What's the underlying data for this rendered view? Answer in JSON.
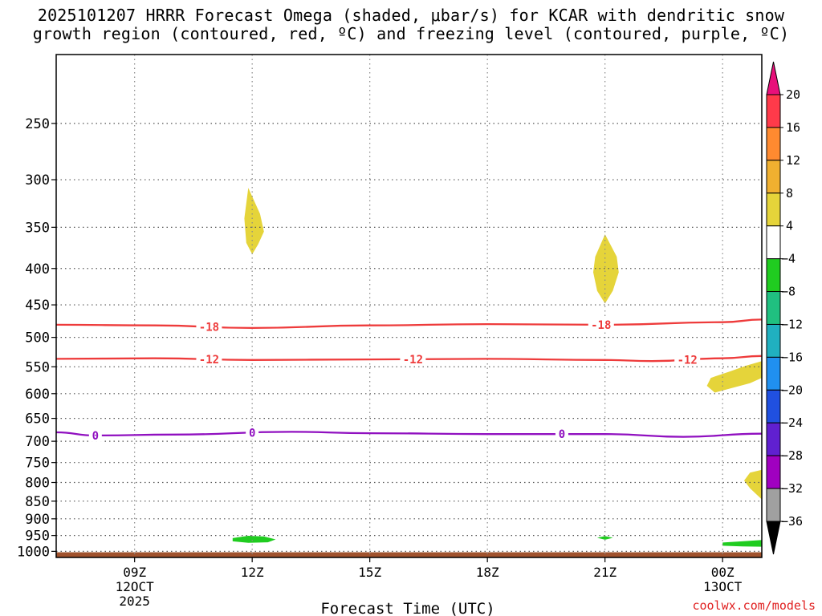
{
  "title": {
    "line1": "2025101207 HRRR Forecast Omega (shaded, μbar/s) for KCAR with dendritic snow",
    "line2": "growth region (contoured, red, ºC) and freezing level (contoured, purple, ºC)"
  },
  "credit": "coolwx.com/models",
  "chart_data": {
    "type": "heatmap",
    "xlabel": "Forecast Time (UTC)",
    "x_ticks": [
      {
        "hour": 9,
        "lines": [
          "09Z",
          "12OCT",
          "2025"
        ]
      },
      {
        "hour": 12,
        "lines": [
          "12Z"
        ]
      },
      {
        "hour": 15,
        "lines": [
          "15Z"
        ]
      },
      {
        "hour": 18,
        "lines": [
          "18Z"
        ]
      },
      {
        "hour": 21,
        "lines": [
          "21Z"
        ]
      },
      {
        "hour": 24,
        "lines": [
          "00Z",
          "13OCT"
        ]
      }
    ],
    "x_range_hours": [
      7,
      25
    ],
    "y_range_hpa": [
      1020,
      200
    ],
    "y_scale": "log",
    "y_ticks": [
      250,
      300,
      350,
      400,
      450,
      500,
      550,
      600,
      650,
      700,
      750,
      800,
      850,
      900,
      950,
      1000
    ],
    "grid": true,
    "colorbar": {
      "labels": [
        20,
        16,
        12,
        8,
        4,
        -4,
        -8,
        -12,
        -16,
        -20,
        -24,
        -28,
        -32,
        -36
      ],
      "colors": [
        "#ff3a4a",
        "#ff8a30",
        "#f0b030",
        "#e5d43a",
        "#ffffff",
        "#20cc20",
        "#20c080",
        "#20b0c0",
        "#2090f0",
        "#2050e0",
        "#6020d0",
        "#a000c0",
        "#a0a0a0"
      ],
      "over_color": "#e8107a",
      "under_color": "#000000"
    },
    "contours": [
      {
        "label": "-18",
        "color": "#ee3b3b",
        "points": [
          [
            7,
            480
          ],
          [
            9.5,
            481
          ],
          [
            12,
            485
          ],
          [
            15,
            481
          ],
          [
            18,
            479
          ],
          [
            21,
            480
          ],
          [
            24,
            476
          ],
          [
            25,
            472
          ]
        ],
        "label_hours": [
          10.9,
          20.9
        ]
      },
      {
        "label": "-12",
        "color": "#ee3b3b",
        "points": [
          [
            7,
            536
          ],
          [
            9.5,
            535
          ],
          [
            12,
            538
          ],
          [
            15,
            537
          ],
          [
            18,
            536
          ],
          [
            21,
            538
          ],
          [
            22.2,
            540
          ],
          [
            24,
            535
          ],
          [
            25,
            531
          ]
        ],
        "label_hours": [
          10.9,
          16.1,
          23.1
        ]
      },
      {
        "label": "0",
        "color": "#9010c0",
        "points": [
          [
            7,
            680
          ],
          [
            8,
            687
          ],
          [
            10,
            685
          ],
          [
            13,
            679
          ],
          [
            15,
            682
          ],
          [
            18,
            684
          ],
          [
            21,
            684
          ],
          [
            23,
            690
          ],
          [
            25,
            683
          ]
        ],
        "label_hours": [
          8.0,
          12.0,
          19.9
        ]
      }
    ],
    "omega_regions": [
      {
        "value": 6,
        "color": "#e5d43a",
        "points": [
          [
            11.9,
            308
          ],
          [
            12.2,
            335
          ],
          [
            12.3,
            355
          ],
          [
            12.15,
            370
          ],
          [
            12.0,
            382
          ],
          [
            11.85,
            368
          ],
          [
            11.8,
            340
          ]
        ]
      },
      {
        "value": 6,
        "color": "#e5d43a",
        "points": [
          [
            21.0,
            358
          ],
          [
            21.3,
            385
          ],
          [
            21.35,
            405
          ],
          [
            21.2,
            430
          ],
          [
            21.0,
            448
          ],
          [
            20.8,
            430
          ],
          [
            20.7,
            405
          ],
          [
            20.75,
            385
          ]
        ]
      },
      {
        "value": 6,
        "color": "#e5d43a",
        "points": [
          [
            25,
            540
          ],
          [
            24.6,
            548
          ],
          [
            24.2,
            558
          ],
          [
            23.7,
            570
          ],
          [
            23.6,
            585
          ],
          [
            23.8,
            598
          ],
          [
            24.2,
            590
          ],
          [
            24.7,
            580
          ],
          [
            25,
            570
          ]
        ]
      },
      {
        "value": 6,
        "color": "#e5d43a",
        "points": [
          [
            25,
            768
          ],
          [
            24.7,
            775
          ],
          [
            24.55,
            795
          ],
          [
            24.7,
            815
          ],
          [
            24.9,
            835
          ],
          [
            25,
            845
          ]
        ]
      },
      {
        "value": -6,
        "color": "#20cc20",
        "points": [
          [
            11.5,
            958
          ],
          [
            11.9,
            951
          ],
          [
            12.3,
            953
          ],
          [
            12.6,
            962
          ],
          [
            12.4,
            971
          ],
          [
            11.9,
            973
          ],
          [
            11.5,
            968
          ]
        ]
      },
      {
        "value": -6,
        "color": "#20cc20",
        "points": [
          [
            20.8,
            957
          ],
          [
            21.0,
            952
          ],
          [
            21.2,
            957
          ],
          [
            21.0,
            963
          ]
        ]
      },
      {
        "value": -6,
        "color": "#20cc20",
        "points": [
          [
            24.0,
            972
          ],
          [
            24.5,
            968
          ],
          [
            25,
            964
          ],
          [
            25,
            985
          ],
          [
            24.5,
            984
          ],
          [
            24.0,
            982
          ]
        ]
      }
    ],
    "ground": {
      "color": "#a0522d",
      "top_hpa": 1003
    }
  }
}
